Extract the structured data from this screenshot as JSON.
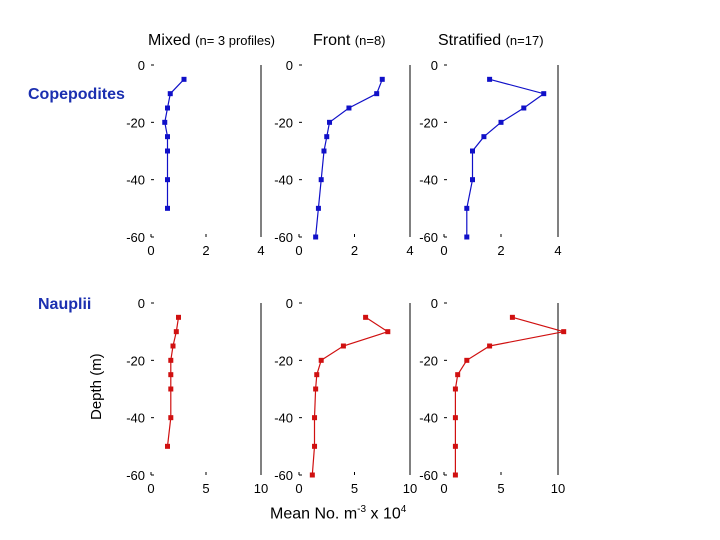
{
  "columns": [
    {
      "title": "Mixed",
      "subtitle": "(n= 3 profiles)"
    },
    {
      "title": "Front",
      "subtitle": "(n=8)"
    },
    {
      "title": "Stratified",
      "subtitle": "(n=17)"
    }
  ],
  "rows": [
    {
      "label": "Copepodites"
    },
    {
      "label": "Nauplii"
    }
  ],
  "axes": {
    "ylabel": "Depth (m)",
    "xlabel_text": "Mean No. m",
    "xlabel_exp": "-3",
    "xlabel_tail": " x 10",
    "xlabel_exp2": "4"
  },
  "colors": {
    "copepodites": "#1010c8",
    "nauplii": "#d01010"
  },
  "chart_data": [
    {
      "type": "line",
      "row": "Copepodites",
      "column": "Mixed",
      "title": "Mixed (n= 3 profiles)",
      "xlim": [
        0,
        4
      ],
      "xticks": [
        0,
        2,
        4
      ],
      "ylim": [
        -60,
        0
      ],
      "yticks": [
        0,
        -20,
        -40,
        -60
      ],
      "x": [
        1.2,
        0.7,
        0.6,
        0.5,
        0.6,
        0.6,
        0.6,
        0.6
      ],
      "y": [
        -5,
        -10,
        -15,
        -20,
        -25,
        -30,
        -40,
        -50
      ]
    },
    {
      "type": "line",
      "row": "Copepodites",
      "column": "Front",
      "title": "Front (n=8)",
      "xlim": [
        0,
        4
      ],
      "xticks": [
        0,
        2,
        4
      ],
      "ylim": [
        -60,
        0
      ],
      "yticks": [
        0,
        -20,
        -40,
        -60
      ],
      "x": [
        3.0,
        2.8,
        1.8,
        1.1,
        1.0,
        0.9,
        0.8,
        0.7,
        0.6
      ],
      "y": [
        -5,
        -10,
        -15,
        -20,
        -25,
        -30,
        -40,
        -50,
        -60
      ]
    },
    {
      "type": "line",
      "row": "Copepodites",
      "column": "Stratified",
      "title": "Stratified (n=17)",
      "xlim": [
        0,
        4
      ],
      "xticks": [
        0,
        2,
        4
      ],
      "ylim": [
        -60,
        0
      ],
      "yticks": [
        0,
        -20,
        -40,
        -60
      ],
      "x": [
        1.6,
        3.5,
        2.8,
        2.0,
        1.4,
        1.0,
        1.0,
        0.8,
        0.8
      ],
      "y": [
        -5,
        -10,
        -15,
        -20,
        -25,
        -30,
        -40,
        -50,
        -60
      ]
    },
    {
      "type": "line",
      "row": "Nauplii",
      "column": "Mixed",
      "title": "",
      "xlim": [
        0,
        10
      ],
      "xticks": [
        0,
        5,
        10
      ],
      "ylim": [
        -60,
        0
      ],
      "yticks": [
        0,
        -20,
        -40,
        -60
      ],
      "x": [
        2.5,
        2.3,
        2.0,
        1.8,
        1.8,
        1.8,
        1.8,
        1.5
      ],
      "y": [
        -5,
        -10,
        -15,
        -20,
        -25,
        -30,
        -40,
        -50
      ]
    },
    {
      "type": "line",
      "row": "Nauplii",
      "column": "Front",
      "title": "",
      "xlim": [
        0,
        10
      ],
      "xticks": [
        0,
        5,
        10
      ],
      "ylim": [
        -60,
        0
      ],
      "yticks": [
        0,
        -20,
        -40,
        -60
      ],
      "x": [
        6.0,
        8.0,
        4.0,
        2.0,
        1.6,
        1.5,
        1.4,
        1.4,
        1.2
      ],
      "y": [
        -5,
        -10,
        -15,
        -20,
        -25,
        -30,
        -40,
        -50,
        -60
      ]
    },
    {
      "type": "line",
      "row": "Nauplii",
      "column": "Stratified",
      "title": "",
      "xlim": [
        0,
        10
      ],
      "xticks": [
        0,
        5,
        10
      ],
      "ylim": [
        -60,
        0
      ],
      "yticks": [
        0,
        -20,
        -40,
        -60
      ],
      "x": [
        6.0,
        10.5,
        4.0,
        2.0,
        1.2,
        1.0,
        1.0,
        1.0,
        1.0
      ],
      "y": [
        -5,
        -10,
        -15,
        -20,
        -25,
        -30,
        -40,
        -50,
        -60
      ]
    }
  ]
}
